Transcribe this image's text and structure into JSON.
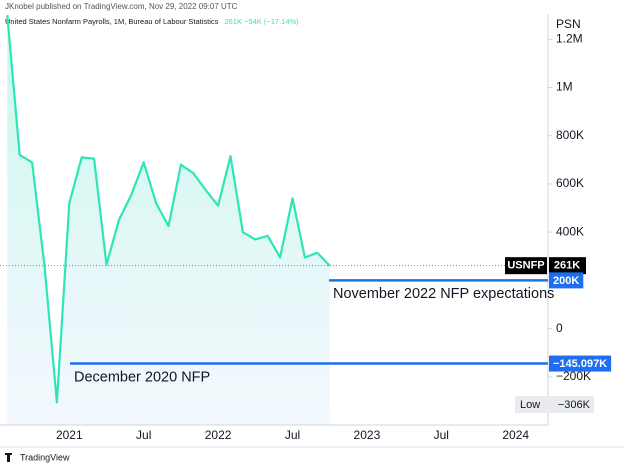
{
  "chart_data": {
    "type": "area",
    "published": "JKnobel published on TradingView.com, Nov 29, 2022 09:07 UTC",
    "title": "United States Nonfarm Payrolls, 1M, Bureau of Labour Statistics",
    "last_change": "261K −54K (−17.14%)",
    "scale_label": "PSN",
    "footer": "TradingView",
    "color": "#2ee6b5",
    "categories": [
      null,
      null,
      null,
      null,
      null,
      "2021",
      null,
      null,
      null,
      null,
      null,
      "Jul",
      null,
      null,
      null,
      null,
      null,
      "2022",
      null,
      null,
      null,
      null,
      null,
      "Jul",
      null,
      null,
      null,
      null,
      null,
      "2023",
      null,
      null,
      null,
      null,
      null,
      "Jul",
      null,
      null,
      null,
      null,
      null,
      "2024",
      null,
      null
    ],
    "values": [
      1300000,
      720000,
      690000,
      260000,
      -306000,
      520000,
      710000,
      705000,
      265000,
      450000,
      555000,
      690000,
      520000,
      425000,
      680000,
      645000,
      575000,
      510000,
      715000,
      400000,
      370000,
      385000,
      295000,
      540000,
      295000,
      315000,
      261000,
      null,
      null,
      null,
      null,
      null,
      null,
      null,
      null,
      null,
      null,
      null,
      null,
      null,
      null,
      null,
      null,
      null
    ],
    "ylim": [
      -400000,
      1330000
    ],
    "yticks": [
      {
        "value": 1200000,
        "label": "1.2M"
      },
      {
        "value": 1000000,
        "label": "1M"
      },
      {
        "value": 800000,
        "label": "800K"
      },
      {
        "value": 600000,
        "label": "600K"
      },
      {
        "value": 400000,
        "label": "400K"
      },
      0,
      {
        "value": -200000,
        "label": "−200K"
      }
    ],
    "last_value": {
      "name": "USNFP",
      "value": 261000,
      "label": "261K"
    },
    "low": {
      "name": "Low",
      "value": -306000,
      "label": "−306K"
    },
    "reference_lines": [
      {
        "value": 200000,
        "label": "200K",
        "text": "November 2022 NFP expectations",
        "color": "#1e6ff0"
      },
      {
        "value": -145097,
        "label": "−145.097K",
        "text": "December 2020 NFP",
        "color": "#1e6ff0"
      }
    ]
  }
}
